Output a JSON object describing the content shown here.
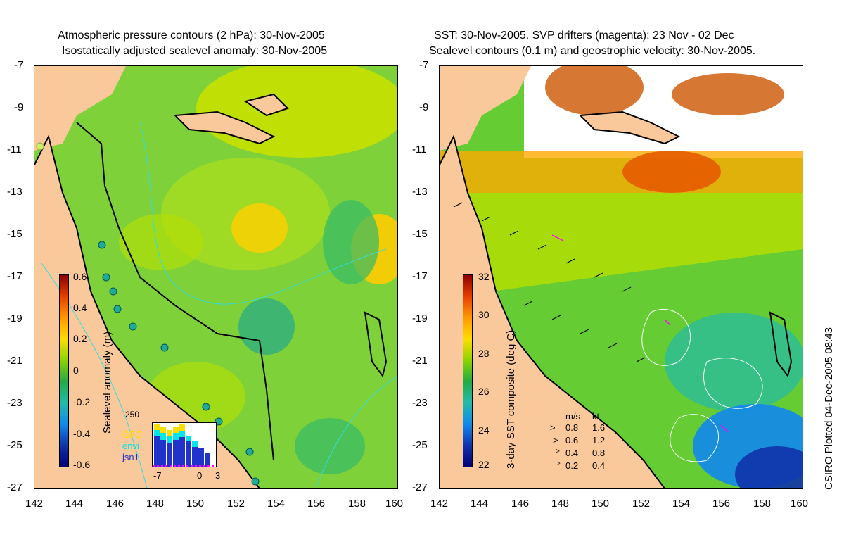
{
  "left_panel": {
    "title_line1": "Atmospheric pressure contours (2 hPa): 30-Nov-2005",
    "title_line2": "Isostatically adjusted sealevel anomaly: 30-Nov-2005",
    "colorbar_label": "Sealevel anomaly (m)",
    "colorbar_ticks": [
      "0.6",
      "0.4",
      "0.2",
      "0",
      "-0.2",
      "-0.4",
      "-0.6"
    ],
    "inset": {
      "ymax_label": "250",
      "legend": [
        {
          "name": "GFO",
          "color": "#ffdd00"
        },
        {
          "name": "envi",
          "color": "#00e5e5"
        },
        {
          "name": "jsn1",
          "color": "#2233cc"
        }
      ],
      "x_ticks": [
        "-7",
        "0",
        "3"
      ]
    }
  },
  "right_panel": {
    "title_line1": "SST: 30-Nov-2005. SVP drifters (magenta): 23 Nov - 02 Dec",
    "title_line2": "Sealevel contours (0.1 m) and geostrophic velocity: 30-Nov-2005.",
    "colorbar_label": "3-day SST composite (deg C)",
    "colorbar_ticks": [
      "32",
      "30",
      "28",
      "26",
      "24",
      "22"
    ],
    "velocity_legend": {
      "header_ms": "m/s",
      "header_kt": "kt",
      "rows": [
        {
          "ms": "0.8",
          "kt": "1.6"
        },
        {
          "ms": "0.6",
          "kt": "1.2"
        },
        {
          "ms": "0.4",
          "kt": "0.8"
        },
        {
          "ms": "0.2",
          "kt": "0.4"
        }
      ]
    }
  },
  "axes": {
    "lat_ticks": [
      "-7",
      "-9",
      "-11",
      "-13",
      "-15",
      "-17",
      "-19",
      "-21",
      "-23",
      "-25",
      "-27"
    ],
    "lon_ticks": [
      "142",
      "144",
      "146",
      "148",
      "150",
      "152",
      "154",
      "156",
      "158",
      "160"
    ]
  },
  "footer": "CSIRO Plotted 04-Dec-2005 08:43",
  "colors": {
    "land": "#f9c89b",
    "ocean_green": "#66cc33",
    "ocean_yellow": "#c8e000",
    "coast": "#000000",
    "contour": "#33dddd"
  }
}
